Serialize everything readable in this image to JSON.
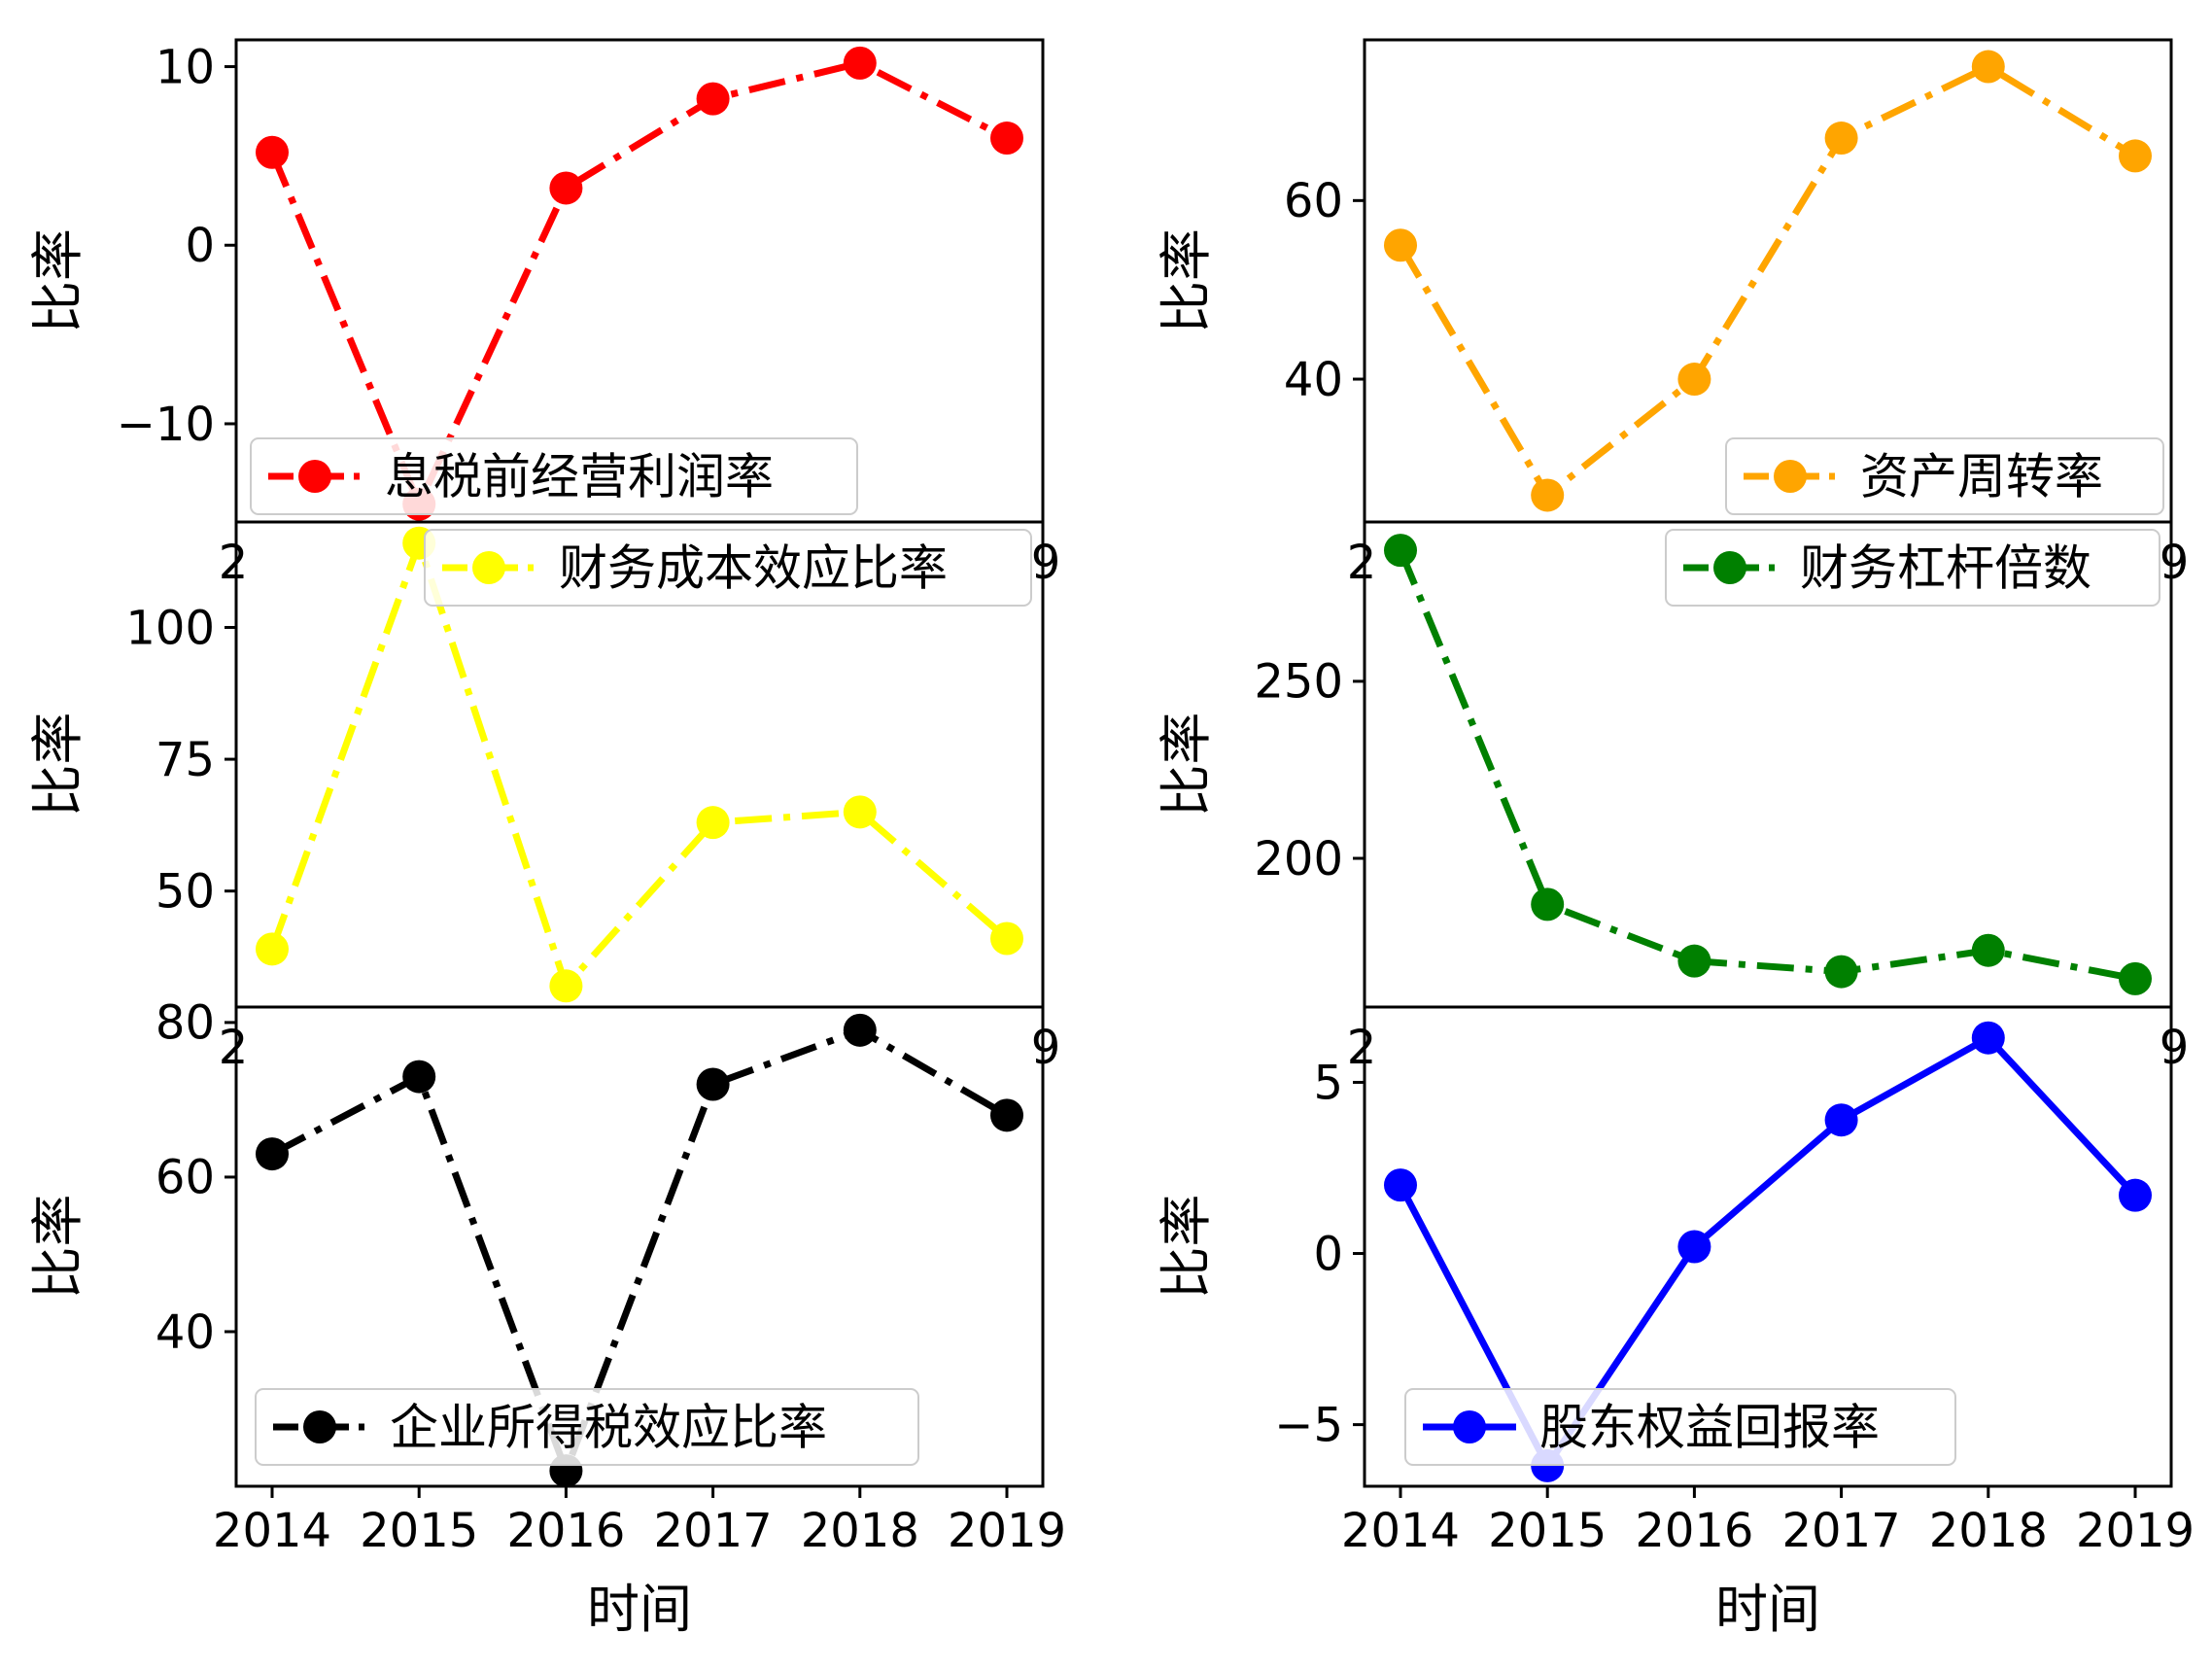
{
  "figure": {
    "background": "#ffffff",
    "xlabel": "时间",
    "ylabel": "比率",
    "x_ticks": [
      "2014",
      "2015",
      "2016",
      "2017",
      "2018",
      "2019"
    ],
    "clipped_tick_fragments": {
      "left": "2",
      "right": "9"
    }
  },
  "chart_data": [
    {
      "type": "line",
      "name": "ebit-operating-profit-margin",
      "legend": "息税前经营利润率",
      "color": "#ff0000",
      "linestyle": "dashdot",
      "row": 0,
      "col": 0,
      "x": [
        2014,
        2015,
        2016,
        2017,
        2018,
        2019
      ],
      "values": [
        5.2,
        -14.5,
        3.2,
        8.2,
        10.2,
        6.0
      ],
      "ylabel": "比率",
      "yticks": [
        10,
        0,
        -10
      ],
      "ylim": [
        -15.5,
        11.5
      ],
      "grid": false,
      "legend_loc": "lower left",
      "legend_margin": [
        15,
        8
      ]
    },
    {
      "type": "line",
      "name": "asset-turnover-ratio",
      "legend": "资产周转率",
      "color": "#ffa500",
      "linestyle": "dashdot",
      "row": 0,
      "col": 1,
      "x": [
        2014,
        2015,
        2016,
        2017,
        2018,
        2019
      ],
      "values": [
        55,
        27,
        40,
        67,
        75,
        65
      ],
      "ylabel": "比率",
      "yticks": [
        60,
        40
      ],
      "ylim": [
        24,
        78
      ],
      "grid": false,
      "legend_loc": "lower right",
      "legend_margin": [
        8,
        8
      ]
    },
    {
      "type": "line",
      "name": "financial-cost-effect-ratio",
      "legend": "财务成本效应比率",
      "color": "#ffff00",
      "linestyle": "dashdot",
      "row": 1,
      "col": 0,
      "x": [
        2014,
        2015,
        2016,
        2017,
        2018,
        2019
      ],
      "values": [
        39,
        116,
        32,
        63,
        65,
        41
      ],
      "ylabel": "比率",
      "yticks": [
        100,
        75,
        50
      ],
      "ylim": [
        28,
        120
      ],
      "grid": false,
      "legend_loc": "upper right",
      "legend_margin": [
        12,
        8
      ]
    },
    {
      "type": "line",
      "name": "financial-leverage-multiple",
      "legend": "财务杠杆倍数",
      "color": "#008000",
      "linestyle": "dashdot",
      "row": 1,
      "col": 1,
      "x": [
        2014,
        2015,
        2016,
        2017,
        2018,
        2019
      ],
      "values": [
        287,
        187,
        171,
        168,
        174,
        166
      ],
      "ylabel": "比率",
      "yticks": [
        250,
        200
      ],
      "ylim": [
        158,
        295
      ],
      "grid": false,
      "legend_loc": "upper right",
      "legend_margin": [
        12,
        8
      ]
    },
    {
      "type": "line",
      "name": "corporate-income-tax-effect-ratio",
      "legend": "企业所得税效应比率",
      "color": "#000000",
      "linestyle": "dashdot",
      "row": 2,
      "col": 0,
      "x": [
        2014,
        2015,
        2016,
        2017,
        2018,
        2019
      ],
      "values": [
        63,
        73,
        22,
        72,
        79,
        68
      ],
      "ylabel": "比率",
      "yticks": [
        80,
        60,
        40
      ],
      "ylim": [
        20,
        82
      ],
      "grid": false,
      "legend_loc": "lower left",
      "legend_margin": [
        20,
        22
      ]
    },
    {
      "type": "line",
      "name": "return-on-equity",
      "legend": "股东权益回报率",
      "color": "#0000ff",
      "linestyle": "solid",
      "row": 2,
      "col": 1,
      "x": [
        2014,
        2015,
        2016,
        2017,
        2018,
        2019
      ],
      "values": [
        2.0,
        -6.2,
        0.2,
        3.9,
        6.3,
        1.7
      ],
      "ylabel": "比率",
      "yticks": [
        5,
        0,
        -5
      ],
      "ylim": [
        -6.8,
        7.2
      ],
      "grid": false,
      "legend_loc": "lower left",
      "legend_margin": [
        42,
        22
      ]
    }
  ]
}
